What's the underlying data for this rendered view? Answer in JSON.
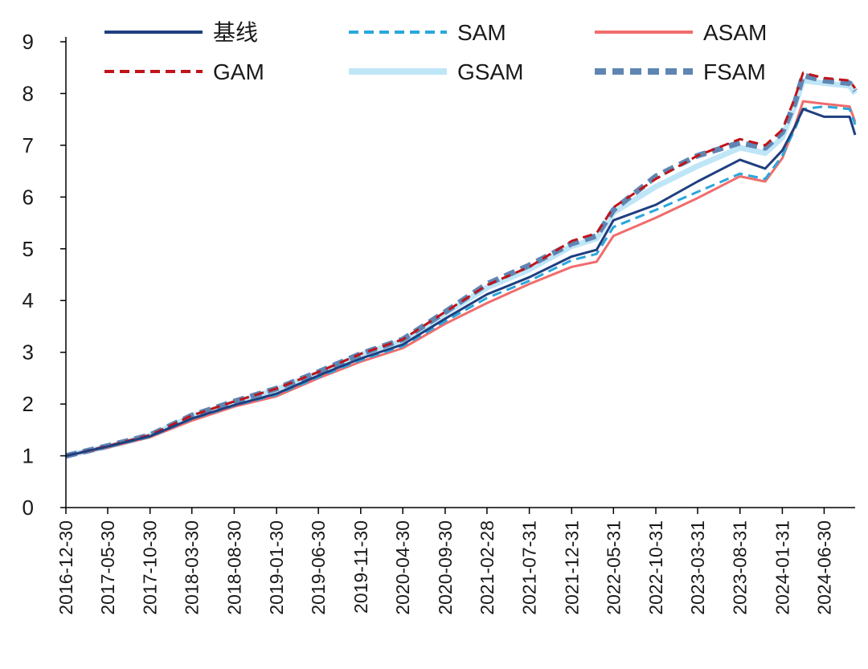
{
  "chart_data": {
    "type": "line",
    "title": "",
    "xlabel": "",
    "ylabel": "",
    "ylim": [
      0,
      9
    ],
    "yticks": [
      0,
      1,
      2,
      3,
      4,
      5,
      6,
      7,
      8,
      9
    ],
    "xlim": [
      "2016-12-30",
      "2024-10-20"
    ],
    "xticks": [
      "2016-12-30",
      "2017-05-30",
      "2017-10-30",
      "2018-03-30",
      "2018-08-30",
      "2019-01-30",
      "2019-06-30",
      "2019-11-30",
      "2020-04-30",
      "2020-09-30",
      "2021-02-28",
      "2021-07-31",
      "2021-12-31",
      "2022-05-31",
      "2022-10-31",
      "2023-03-31",
      "2023-08-31",
      "2024-01-31",
      "2024-06-30"
    ],
    "grid": false,
    "legend_position": "top",
    "series": [
      {
        "name": "基线",
        "color": "#1f3f7f",
        "style": "solid",
        "x": [
          "2016-12-30",
          "2017-05-30",
          "2017-10-30",
          "2018-03-30",
          "2018-08-30",
          "2019-01-30",
          "2019-06-30",
          "2019-11-30",
          "2020-04-30",
          "2020-09-30",
          "2021-02-28",
          "2021-07-31",
          "2021-12-31",
          "2022-03-31",
          "2022-05-31",
          "2022-10-31",
          "2023-03-31",
          "2023-08-31",
          "2023-11-30",
          "2024-01-31",
          "2024-03-15",
          "2024-04-15",
          "2024-06-30",
          "2024-09-30",
          "2024-10-20"
        ],
        "values": [
          1.0,
          1.18,
          1.38,
          1.72,
          1.98,
          2.2,
          2.55,
          2.88,
          3.15,
          3.65,
          4.12,
          4.45,
          4.85,
          4.98,
          5.55,
          5.85,
          6.3,
          6.72,
          6.55,
          6.9,
          7.35,
          7.7,
          7.55,
          7.55,
          7.2
        ]
      },
      {
        "name": "SAM",
        "color": "#2aa7dc",
        "style": "dashed",
        "x": [
          "2016-12-30",
          "2017-05-30",
          "2017-10-30",
          "2018-03-30",
          "2018-08-30",
          "2019-01-30",
          "2019-06-30",
          "2019-11-30",
          "2020-04-30",
          "2020-09-30",
          "2021-02-28",
          "2021-07-31",
          "2021-12-31",
          "2022-03-31",
          "2022-05-31",
          "2022-10-31",
          "2023-03-31",
          "2023-08-31",
          "2023-11-30",
          "2024-01-31",
          "2024-03-15",
          "2024-04-15",
          "2024-06-30",
          "2024-09-30",
          "2024-10-20"
        ],
        "values": [
          1.0,
          1.17,
          1.37,
          1.71,
          1.97,
          2.18,
          2.52,
          2.85,
          3.12,
          3.6,
          4.05,
          4.38,
          4.78,
          4.9,
          5.42,
          5.75,
          6.1,
          6.45,
          6.35,
          6.8,
          7.3,
          7.7,
          7.75,
          7.7,
          7.4
        ]
      },
      {
        "name": "ASAM",
        "color": "#f06c6c",
        "style": "solid",
        "x": [
          "2016-12-30",
          "2017-05-30",
          "2017-10-30",
          "2018-03-30",
          "2018-08-30",
          "2019-01-30",
          "2019-06-30",
          "2019-11-30",
          "2020-04-30",
          "2020-09-30",
          "2021-02-28",
          "2021-07-31",
          "2021-12-31",
          "2022-03-31",
          "2022-05-31",
          "2022-10-31",
          "2023-03-31",
          "2023-08-31",
          "2023-11-30",
          "2024-01-31",
          "2024-03-15",
          "2024-04-15",
          "2024-06-30",
          "2024-09-30",
          "2024-10-20"
        ],
        "values": [
          1.0,
          1.16,
          1.36,
          1.68,
          1.95,
          2.15,
          2.5,
          2.82,
          3.08,
          3.55,
          3.95,
          4.32,
          4.65,
          4.75,
          5.25,
          5.6,
          5.98,
          6.4,
          6.3,
          6.75,
          7.35,
          7.85,
          7.8,
          7.75,
          7.45
        ]
      },
      {
        "name": "GAM",
        "color": "#c0141a",
        "style": "dashed",
        "x": [
          "2016-12-30",
          "2017-05-30",
          "2017-10-30",
          "2018-03-30",
          "2018-08-30",
          "2019-01-30",
          "2019-06-30",
          "2019-11-30",
          "2020-04-30",
          "2020-09-30",
          "2021-02-28",
          "2021-07-31",
          "2021-12-31",
          "2022-03-31",
          "2022-05-31",
          "2022-10-31",
          "2023-03-31",
          "2023-08-31",
          "2023-11-30",
          "2024-01-31",
          "2024-03-15",
          "2024-04-15",
          "2024-06-30",
          "2024-09-30",
          "2024-10-20"
        ],
        "values": [
          1.0,
          1.19,
          1.4,
          1.78,
          2.05,
          2.3,
          2.62,
          2.97,
          3.25,
          3.78,
          4.3,
          4.65,
          5.15,
          5.3,
          5.8,
          6.35,
          6.8,
          7.12,
          7.0,
          7.3,
          7.9,
          8.4,
          8.3,
          8.25,
          8.1
        ]
      },
      {
        "name": "GSAM",
        "color": "#bfe6f7",
        "style": "solid-thick",
        "x": [
          "2016-12-30",
          "2017-05-30",
          "2017-10-30",
          "2018-03-30",
          "2018-08-30",
          "2019-01-30",
          "2019-06-30",
          "2019-11-30",
          "2020-04-30",
          "2020-09-30",
          "2021-02-28",
          "2021-07-31",
          "2021-12-31",
          "2022-03-31",
          "2022-05-31",
          "2022-10-31",
          "2023-03-31",
          "2023-08-31",
          "2023-11-30",
          "2024-01-31",
          "2024-03-15",
          "2024-04-15",
          "2024-06-30",
          "2024-09-30",
          "2024-10-20"
        ],
        "values": [
          1.0,
          1.18,
          1.39,
          1.76,
          2.03,
          2.28,
          2.6,
          2.95,
          3.22,
          3.75,
          4.25,
          4.6,
          5.05,
          5.2,
          5.7,
          6.2,
          6.6,
          6.95,
          6.85,
          7.15,
          7.75,
          8.25,
          8.2,
          8.15,
          8.0
        ]
      },
      {
        "name": "FSAM",
        "color": "#5f86b3",
        "style": "dashed-thick",
        "x": [
          "2016-12-30",
          "2017-05-30",
          "2017-10-30",
          "2018-03-30",
          "2018-08-30",
          "2019-01-30",
          "2019-06-30",
          "2019-11-30",
          "2020-04-30",
          "2020-09-30",
          "2021-02-28",
          "2021-07-31",
          "2021-12-31",
          "2022-03-31",
          "2022-05-31",
          "2022-10-31",
          "2023-03-31",
          "2023-08-31",
          "2023-11-30",
          "2024-01-31",
          "2024-03-15",
          "2024-04-15",
          "2024-06-30",
          "2024-09-30",
          "2024-10-20"
        ],
        "values": [
          1.0,
          1.19,
          1.4,
          1.78,
          2.05,
          2.3,
          2.62,
          2.97,
          3.25,
          3.78,
          4.32,
          4.68,
          5.1,
          5.25,
          5.75,
          6.4,
          6.8,
          7.05,
          6.95,
          7.25,
          7.8,
          8.35,
          8.25,
          8.2,
          8.05
        ]
      }
    ]
  }
}
